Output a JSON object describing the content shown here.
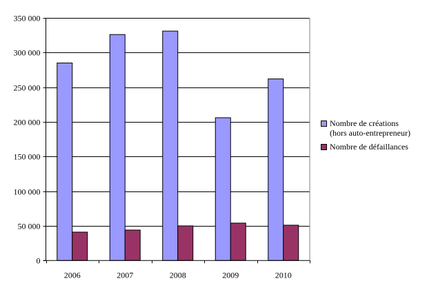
{
  "chart_data": {
    "type": "bar",
    "title": "",
    "xlabel": "",
    "ylabel": "",
    "categories": [
      "2006",
      "2007",
      "2008",
      "2009",
      "2010"
    ],
    "series": [
      {
        "name": "Nombre de créations",
        "name_line2": "(hors auto-entrepreneur)",
        "color": "#9999ff",
        "values": [
          285000,
          326000,
          331000,
          206000,
          262000
        ]
      },
      {
        "name": "Nombre de défaillances",
        "color": "#993366",
        "values": [
          41000,
          44000,
          50000,
          54000,
          51000
        ]
      }
    ],
    "ylim": [
      0,
      350000
    ],
    "yticks": [
      0,
      50000,
      100000,
      150000,
      200000,
      250000,
      300000,
      350000
    ],
    "ytick_labels": [
      "0",
      "50 000",
      "100 000",
      "150 000",
      "200 000",
      "250 000",
      "300 000",
      "350 000"
    ],
    "grid": true,
    "legend": "right"
  }
}
